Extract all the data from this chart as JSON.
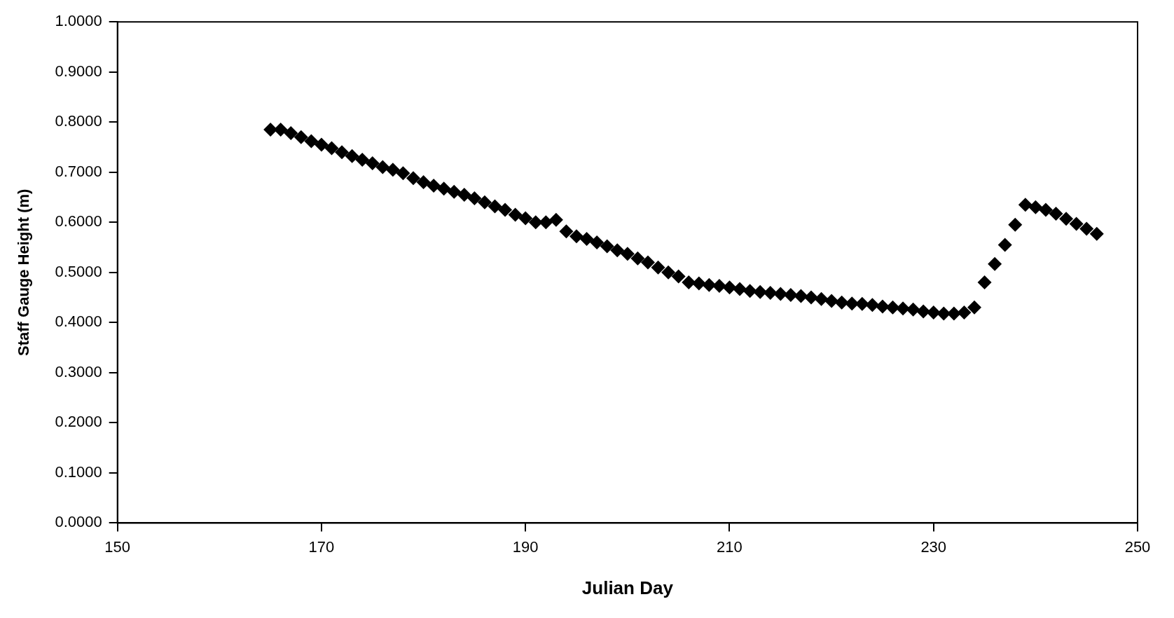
{
  "chart_data": {
    "type": "scatter",
    "xlabel": "Julian Day",
    "ylabel": "Staff Gauge Height (m)",
    "xlim": [
      150,
      250
    ],
    "xticks": [
      150,
      170,
      190,
      210,
      230,
      250
    ],
    "ylim": [
      0,
      1
    ],
    "yticks": [
      {
        "value": 0,
        "label": "0.0000"
      },
      {
        "value": 0.1,
        "label": "0.1000"
      },
      {
        "value": 0.2,
        "label": "0.2000"
      },
      {
        "value": 0.3,
        "label": "0.3000"
      },
      {
        "value": 0.4,
        "label": "0.4000"
      },
      {
        "value": 0.5,
        "label": "0.5000"
      },
      {
        "value": 0.6,
        "label": "0.6000"
      },
      {
        "value": 0.7,
        "label": "0.7000"
      },
      {
        "value": 0.8,
        "label": "0.8000"
      },
      {
        "value": 0.9,
        "label": "0.9000"
      },
      {
        "value": 1,
        "label": "1.0000"
      }
    ],
    "grid": false,
    "legend": false,
    "marker": "diamond",
    "series": [
      {
        "color": "#000000",
        "x": [
          165,
          166,
          167,
          168,
          169,
          170,
          171,
          172,
          173,
          174,
          175,
          176,
          177,
          178,
          179,
          180,
          181,
          182,
          183,
          184,
          185,
          186,
          187,
          188,
          189,
          190,
          191,
          192,
          193,
          194,
          195,
          196,
          197,
          198,
          199,
          200,
          201,
          202,
          203,
          204,
          205,
          206,
          207,
          208,
          209,
          210,
          211,
          212,
          213,
          214,
          215,
          216,
          217,
          218,
          219,
          220,
          221,
          222,
          223,
          224,
          225,
          226,
          227,
          228,
          229,
          230,
          231,
          232,
          233,
          234,
          235,
          236,
          237,
          238,
          239,
          240,
          241,
          242,
          243,
          244,
          245,
          246
        ],
        "values": [
          0.785,
          0.785,
          0.778,
          0.77,
          0.762,
          0.755,
          0.748,
          0.74,
          0.732,
          0.725,
          0.718,
          0.71,
          0.705,
          0.698,
          0.688,
          0.68,
          0.673,
          0.667,
          0.661,
          0.655,
          0.648,
          0.64,
          0.632,
          0.625,
          0.615,
          0.608,
          0.6,
          0.6,
          0.605,
          0.582,
          0.572,
          0.567,
          0.56,
          0.552,
          0.544,
          0.537,
          0.528,
          0.52,
          0.51,
          0.5,
          0.492,
          0.48,
          0.478,
          0.475,
          0.473,
          0.47,
          0.467,
          0.463,
          0.461,
          0.459,
          0.457,
          0.455,
          0.453,
          0.45,
          0.447,
          0.443,
          0.44,
          0.438,
          0.437,
          0.435,
          0.432,
          0.43,
          0.428,
          0.426,
          0.422,
          0.42,
          0.418,
          0.418,
          0.42,
          0.43,
          0.48,
          0.517,
          0.555,
          0.595,
          0.635,
          0.63,
          0.625,
          0.617,
          0.607,
          0.597,
          0.587,
          0.577
        ]
      }
    ]
  }
}
